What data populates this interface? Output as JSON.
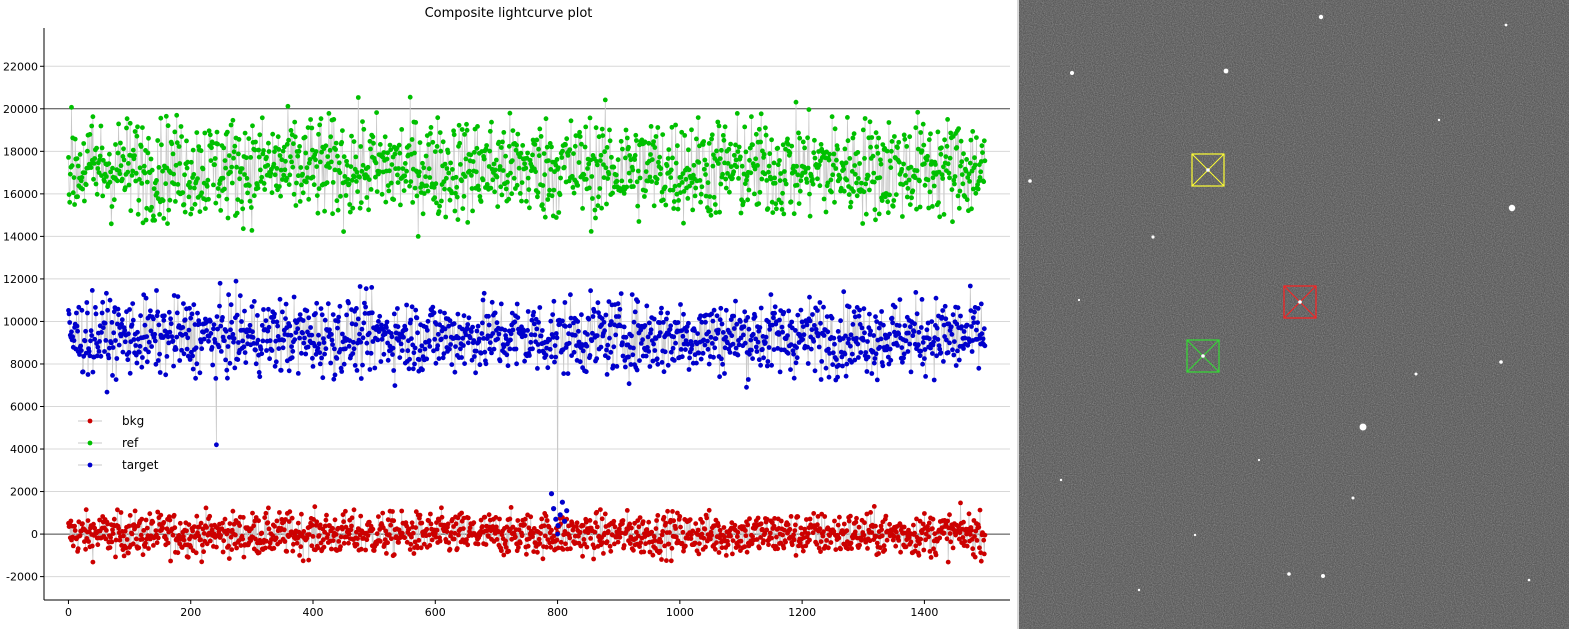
{
  "chart_data": {
    "type": "scatter",
    "title": "Composite lightcurve plot",
    "xlabel": "",
    "ylabel": "",
    "xlim": [
      -40,
      1540
    ],
    "ylim": [
      -3100,
      23800
    ],
    "x_ticks": [
      0,
      200,
      400,
      600,
      800,
      1000,
      1200,
      1400
    ],
    "y_ticks": [
      -2000,
      0,
      2000,
      4000,
      6000,
      8000,
      10000,
      12000,
      14000,
      16000,
      18000,
      20000,
      22000
    ],
    "grid": true,
    "legend_position": "left",
    "n_points": 1500,
    "series": [
      {
        "name": "bkg",
        "color": "#cc0000",
        "mean": 0,
        "spread": 720,
        "highlight": {
          "x_range": [
            790,
            815
          ],
          "color": "#0000cc",
          "values": [
            1900,
            1200,
            700,
            400,
            900,
            1500,
            600,
            1100
          ]
        }
      },
      {
        "name": "ref",
        "color": "#00c000",
        "mean": 17200,
        "spread": 1700
      },
      {
        "name": "target",
        "color": "#0000cc",
        "mean": 9300,
        "spread": 1250,
        "outliers": [
          {
            "x": 242,
            "y": 4200
          },
          {
            "x": 800,
            "y": 0
          }
        ]
      }
    ]
  },
  "image_panel": {
    "background": "#4a4a4a",
    "markers": [
      {
        "label": "target-marker",
        "color": "#ff2020",
        "cx": 1300,
        "cy": 302
      },
      {
        "label": "reference-marker",
        "color": "#33dd33",
        "cx": 1203,
        "cy": 356
      },
      {
        "label": "background-marker",
        "color": "#ffff33",
        "cx": 1208,
        "cy": 170
      }
    ]
  }
}
